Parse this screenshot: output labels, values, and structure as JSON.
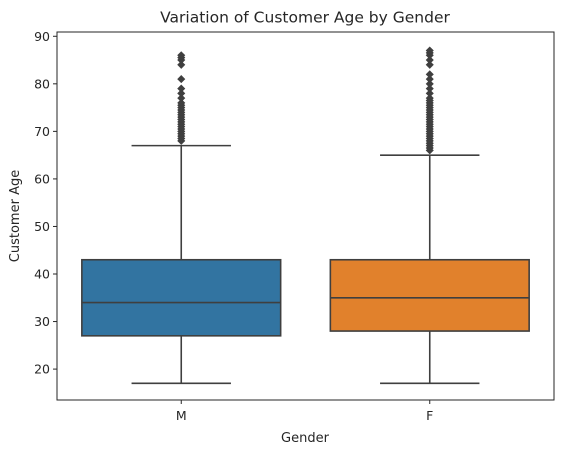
{
  "chart_data": {
    "type": "boxplot",
    "title": "Variation of Customer Age by Gender",
    "xlabel": "Gender",
    "ylabel": "Customer Age",
    "ylim": [
      13.5,
      90.9
    ],
    "yticks": [
      20,
      30,
      40,
      50,
      60,
      70,
      80,
      90
    ],
    "grid": false,
    "categories": [
      "M",
      "F"
    ],
    "boxes": [
      {
        "category": "M",
        "color": "#3274a1",
        "whisker_low": 17,
        "q1": 27,
        "median": 34,
        "q3": 43,
        "whisker_high": 67,
        "outliers": [
          68,
          68.5,
          69,
          69.5,
          70,
          70.5,
          71,
          71.5,
          72,
          72.5,
          73,
          73.5,
          74,
          74.5,
          75,
          75.5,
          76,
          77,
          78,
          79,
          81,
          84,
          85,
          85.5,
          86
        ]
      },
      {
        "category": "F",
        "color": "#e1812c",
        "whisker_low": 17,
        "q1": 28,
        "median": 35,
        "q3": 43,
        "whisker_high": 65,
        "outliers": [
          66,
          66.5,
          67,
          67.5,
          68,
          68.5,
          69,
          69.5,
          70,
          70.5,
          71,
          71.5,
          72,
          72.5,
          73,
          73.5,
          74,
          74.5,
          75,
          75.5,
          76,
          76.5,
          77,
          78,
          79,
          80,
          81,
          82,
          84,
          85,
          86,
          86.5,
          87
        ]
      }
    ]
  }
}
